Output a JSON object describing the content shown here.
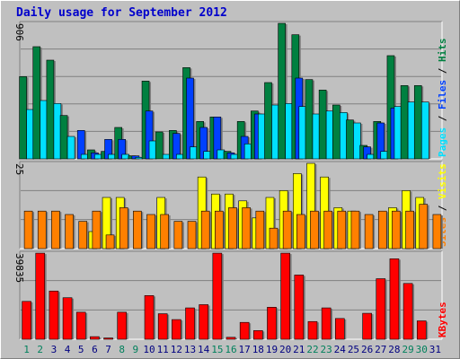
{
  "title": "Daily usage for September 2012",
  "chart_data": {
    "type": "bar",
    "title": "Daily usage for September 2012",
    "x": [
      1,
      2,
      3,
      4,
      5,
      6,
      7,
      8,
      9,
      10,
      11,
      12,
      13,
      14,
      15,
      16,
      17,
      18,
      19,
      20,
      21,
      22,
      23,
      24,
      25,
      26,
      27,
      28,
      29,
      30,
      31
    ],
    "x_tick_labels": [
      "1",
      "2",
      "3",
      "4",
      "5",
      "6",
      "7",
      "8",
      "9",
      "10",
      "11",
      "12",
      "13",
      "14",
      "15",
      "16",
      "17",
      "18",
      "19",
      "20",
      "21",
      "22",
      "23",
      "24",
      "25",
      "26",
      "27",
      "28",
      "29",
      "30",
      "31"
    ],
    "weekend_days": [
      1,
      2,
      8,
      9,
      15,
      16,
      22,
      23,
      29,
      30
    ],
    "colors": {
      "hits": "#008040",
      "files": "#0040ff",
      "pages": "#00e0ff",
      "visits": "#ffff00",
      "sites": "#ff8000",
      "kbytes": "#ff0000",
      "weekday_tick": "#000080",
      "weekend_tick": "#00805c",
      "title": "#0000cc"
    },
    "panels": [
      {
        "name": "hits-files-pages",
        "ymax_label": "906",
        "ymax": 906,
        "axis_labels": [
          {
            "text": "Pages",
            "color": "#00e0ff"
          },
          {
            "text": " / ",
            "color": "#000000"
          },
          {
            "text": "Files",
            "color": "#0040ff"
          },
          {
            "text": " / ",
            "color": "#000000"
          },
          {
            "text": "Hits",
            "color": "#008040"
          }
        ],
        "series": [
          {
            "name": "Hits",
            "color": "#008040",
            "values": [
              550,
              750,
              660,
              290,
              0,
              60,
              50,
              210,
              20,
              520,
              180,
              190,
              610,
              250,
              280,
              50,
              250,
              320,
              510,
              906,
              830,
              530,
              460,
              360,
              260,
              90,
              250,
              690,
              490,
              490,
              0
            ]
          },
          {
            "name": "Files",
            "color": "#0040ff",
            "values": [
              0,
              0,
              0,
              0,
              190,
              40,
              130,
              130,
              20,
              320,
              0,
              170,
              540,
              210,
              280,
              40,
              150,
              300,
              0,
              0,
              540,
              0,
              0,
              0,
              0,
              80,
              240,
              340,
              0,
              0,
              0
            ]
          },
          {
            "name": "Pages",
            "color": "#00e0ff",
            "values": [
              330,
              390,
              370,
              150,
              30,
              30,
              30,
              30,
              10,
              120,
              30,
              30,
              80,
              50,
              60,
              30,
              100,
              300,
              360,
              370,
              350,
              300,
              320,
              310,
              240,
              30,
              50,
              350,
              380,
              380,
              0
            ]
          }
        ]
      },
      {
        "name": "visits-sites",
        "ymax_label": "25",
        "ymax": 25,
        "axis_labels": [
          {
            "text": "Sites",
            "color": "#ff8000"
          },
          {
            "text": " / ",
            "color": "#000000"
          },
          {
            "text": "Visits",
            "color": "#ffff00"
          }
        ],
        "series": [
          {
            "name": "Visits",
            "color": "#ffff00",
            "values": [
              0,
              0,
              0,
              0,
              0,
              5,
              15,
              15,
              0,
              0,
              15,
              0,
              0,
              21,
              16,
              16,
              14,
              9,
              15,
              17,
              22,
              25,
              21,
              12,
              11,
              0,
              0,
              12,
              17,
              15,
              0
            ]
          },
          {
            "name": "Sites",
            "color": "#ff8000",
            "values": [
              11,
              11,
              11,
              10,
              8,
              11,
              4,
              12,
              11,
              10,
              10,
              8,
              8,
              11,
              11,
              12,
              12,
              11,
              6,
              11,
              10,
              11,
              11,
              11,
              11,
              10,
              11,
              11,
              11,
              13,
              10
            ]
          }
        ]
      },
      {
        "name": "kbytes",
        "ymax_label": "39835",
        "ymax": 39835,
        "axis_labels": [
          {
            "text": "KBytes",
            "color": "#ff0000"
          }
        ],
        "series": [
          {
            "name": "KBytes",
            "color": "#ff0000",
            "values": [
              17500,
              39800,
              22300,
              19200,
              12500,
              1200,
              600,
              12500,
              0,
              20200,
              11800,
              9100,
              14500,
              16000,
              39800,
              900,
              7800,
              4000,
              14800,
              39800,
              29700,
              8200,
              14500,
              9600,
              0,
              12000,
              28000,
              37200,
              25800,
              8500,
              0
            ]
          }
        ]
      }
    ]
  }
}
